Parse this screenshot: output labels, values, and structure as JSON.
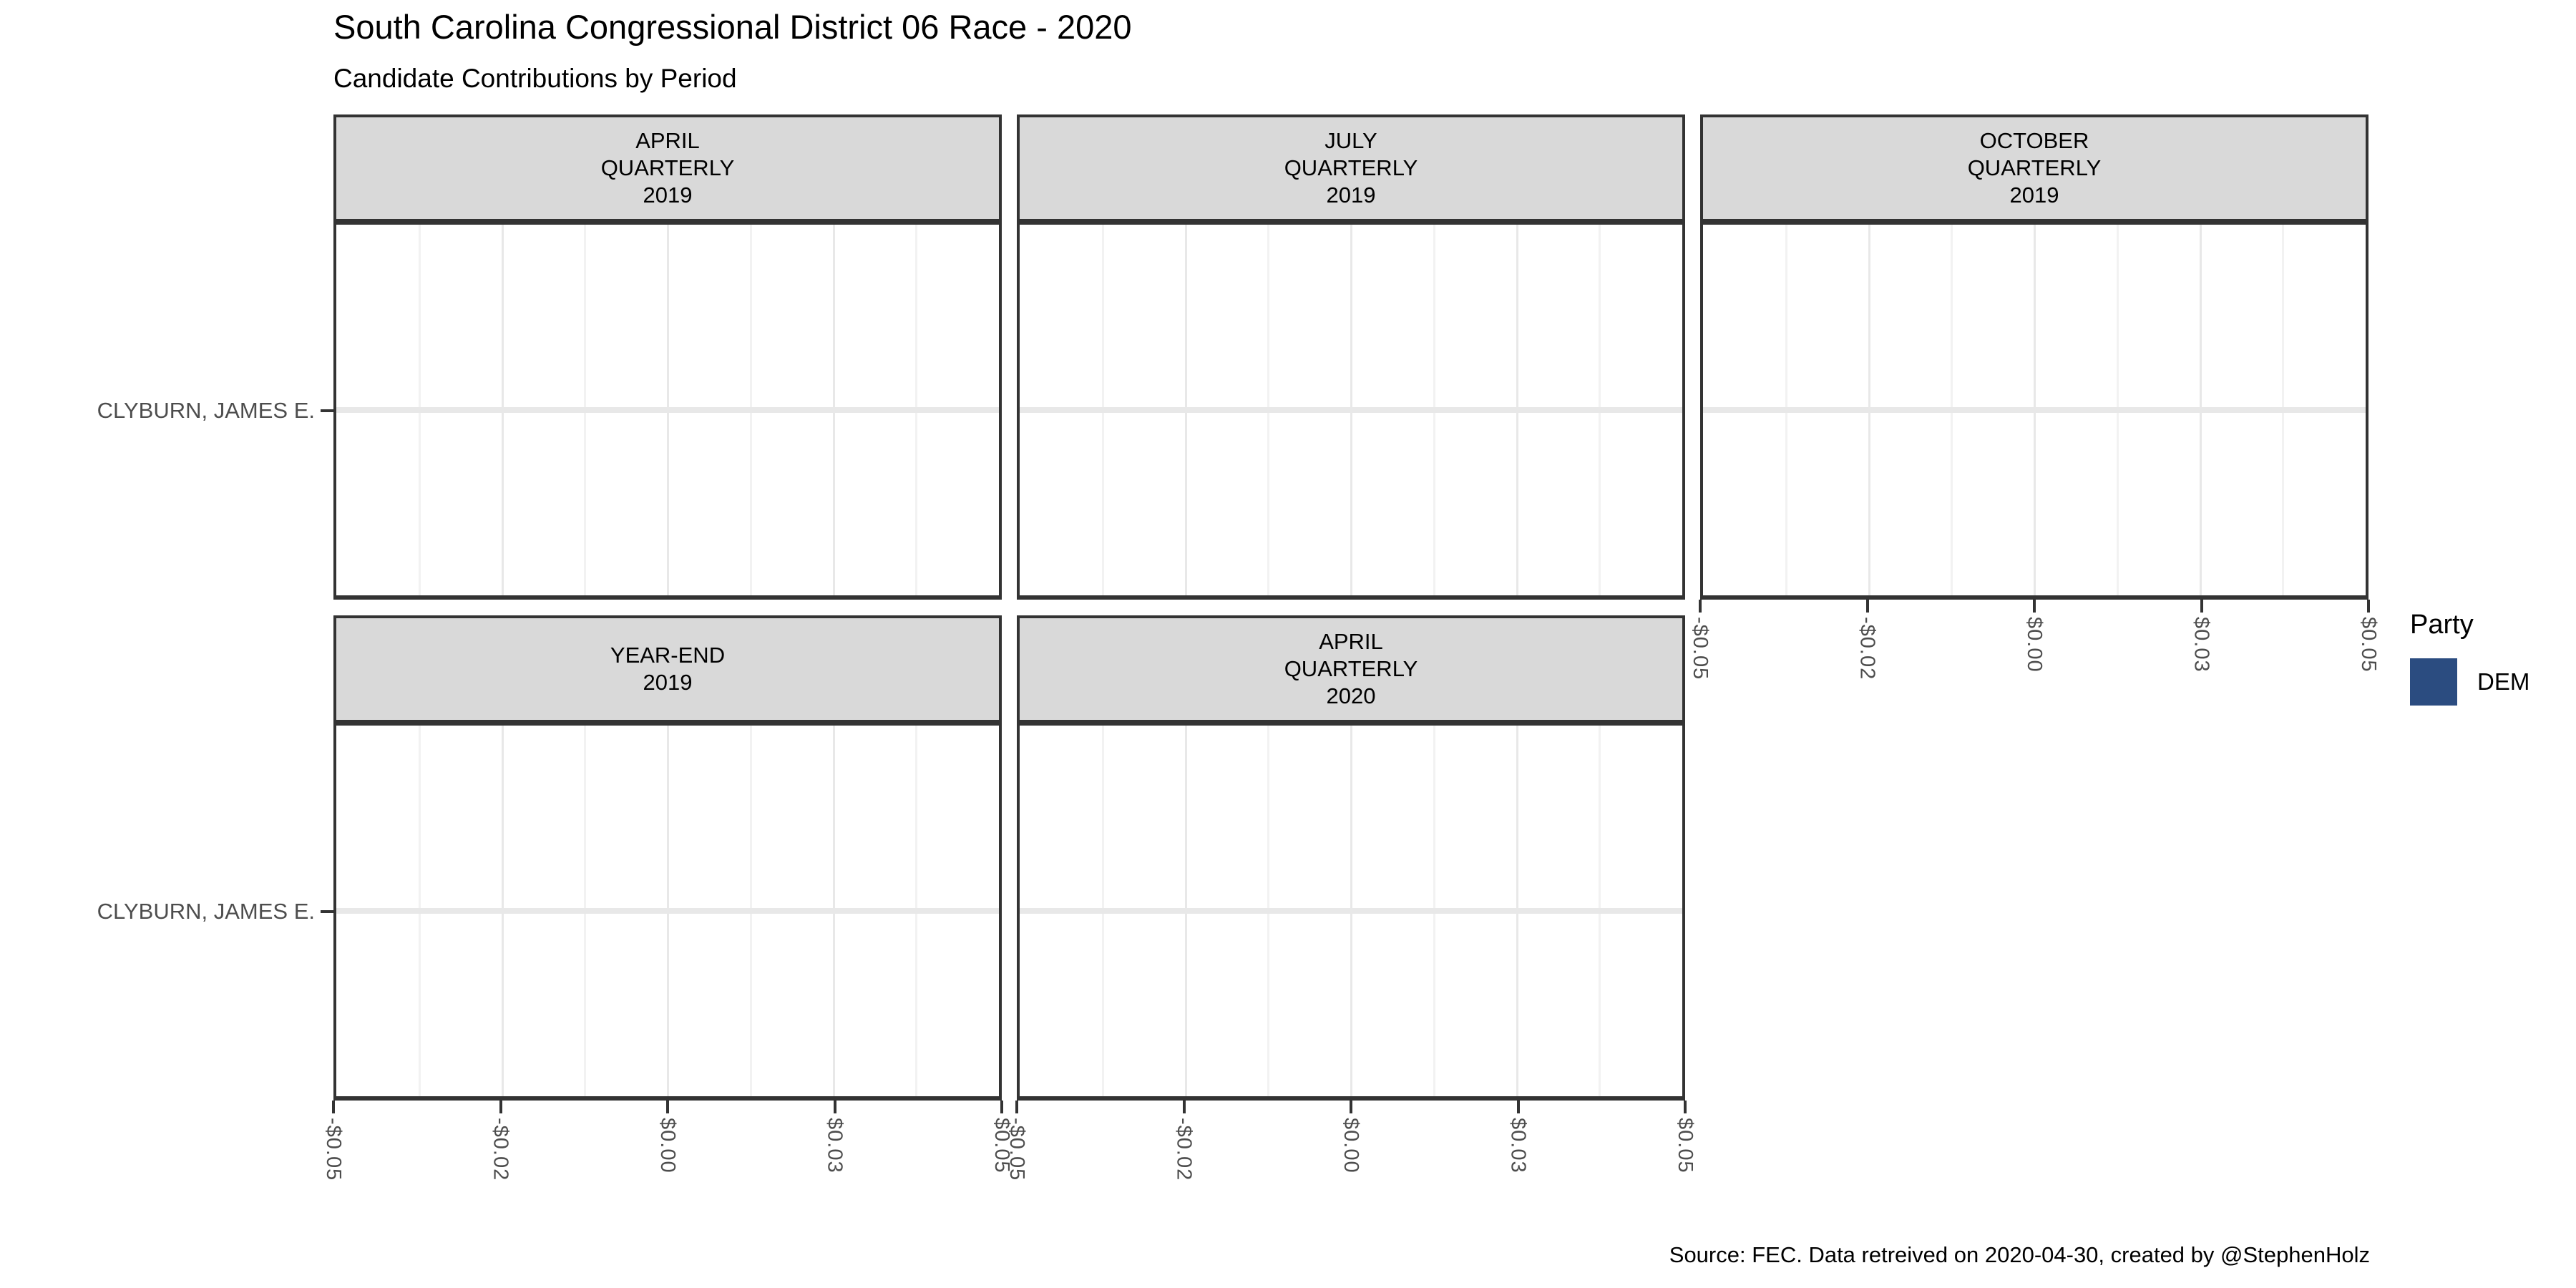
{
  "colors": {
    "strip_bg": "#D9D9D9",
    "panel_border": "#333333",
    "grid_major": "#E8E8E8",
    "grid_minor": "#F2F2F2",
    "axis_text": "#4D4D4D",
    "text": "#000000",
    "background": "#FFFFFF"
  },
  "legend": {
    "title": "Party",
    "items": [
      {
        "label": "DEM",
        "color": "#2B4C80"
      }
    ]
  },
  "chart_data": {
    "type": "bar",
    "orientation": "horizontal",
    "title": "South Carolina Congressional District 06 Race - 2020",
    "subtitle": "Candidate Contributions by Period",
    "caption": "Source: FEC. Data retreived on 2020-04-30, created by @StephenHolz",
    "legend_title": "Party",
    "legend_position": "right",
    "grid": true,
    "categories": [
      "CLYBURN, JAMES E."
    ],
    "x_tick_labels": [
      "-$0.05",
      "-$0.02",
      "$0.00",
      "$0.03",
      "$0.05"
    ],
    "xlim": [
      -0.05,
      0.05
    ],
    "facets": [
      {
        "label_lines": [
          "APRIL",
          "QUARTERLY",
          "2019"
        ],
        "row": 0,
        "col": 0,
        "x_axis_below": false,
        "values": [
          0
        ]
      },
      {
        "label_lines": [
          "JULY",
          "QUARTERLY",
          "2019"
        ],
        "row": 0,
        "col": 1,
        "x_axis_below": false,
        "values": [
          0
        ]
      },
      {
        "label_lines": [
          "OCTOBER",
          "QUARTERLY",
          "2019"
        ],
        "row": 0,
        "col": 2,
        "x_axis_below": true,
        "values": [
          0
        ]
      },
      {
        "label_lines": [
          "YEAR-END",
          "2019"
        ],
        "row": 1,
        "col": 0,
        "x_axis_below": true,
        "values": [
          0
        ]
      },
      {
        "label_lines": [
          "APRIL",
          "QUARTERLY",
          "2020"
        ],
        "row": 1,
        "col": 1,
        "x_axis_below": true,
        "values": [
          0
        ]
      }
    ],
    "series": [
      {
        "name": "DEM",
        "color": "#2B4C80",
        "values_by_facet": [
          [
            0
          ],
          [
            0
          ],
          [
            0
          ],
          [
            0
          ],
          [
            0
          ]
        ]
      }
    ]
  }
}
